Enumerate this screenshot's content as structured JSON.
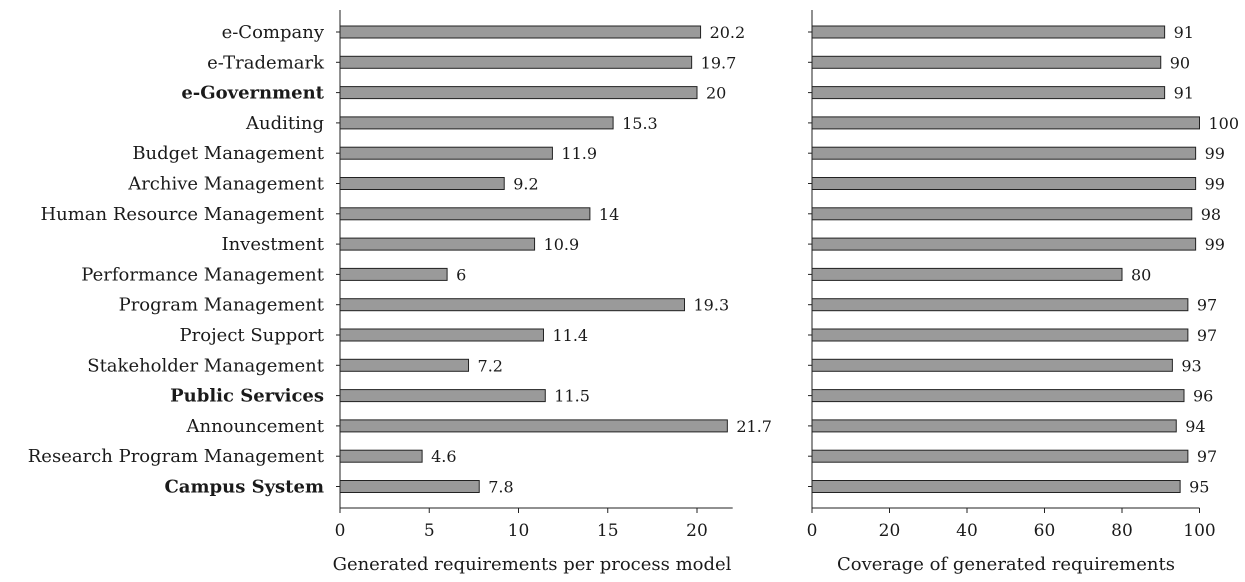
{
  "colors": {
    "bar_fill": "#9a9a9a",
    "bar_stroke": "#222222"
  },
  "chart_data": [
    {
      "type": "bar",
      "orientation": "horizontal",
      "categories": [
        "e-Company",
        "e-Trademark",
        "e-Government",
        "Auditing",
        "Budget Management",
        "Archive Management",
        "Human Resource Management",
        "Investment",
        "Performance Management",
        "Program Management",
        "Project Support",
        "Stakeholder Management",
        "Public Services",
        "Announcement",
        "Research Program Management",
        "Campus System"
      ],
      "bold_categories": [
        "e-Government",
        "Public Services",
        "Campus System"
      ],
      "values": [
        20.2,
        19.7,
        20,
        15.3,
        11.9,
        9.2,
        14,
        10.9,
        6,
        19.3,
        11.4,
        7.2,
        11.5,
        21.7,
        4.6,
        7.8
      ],
      "value_labels": [
        "20.2",
        "19.7",
        "20",
        "15.3",
        "11.9",
        "9.2",
        "14",
        "10.9",
        "6",
        "19.3",
        "11.4",
        "7.2",
        "11.5",
        "21.7",
        "4.6",
        "7.8"
      ],
      "xlabel": "Generated requirements per process model",
      "xlim": [
        0,
        22
      ],
      "xticks": [
        "0",
        "5",
        "10",
        "15",
        "20"
      ],
      "grid": false
    },
    {
      "type": "bar",
      "orientation": "horizontal",
      "categories": [
        "e-Company",
        "e-Trademark",
        "e-Government",
        "Auditing",
        "Budget Management",
        "Archive Management",
        "Human Resource Management",
        "Investment",
        "Performance Management",
        "Program Management",
        "Project Support",
        "Stakeholder Management",
        "Public Services",
        "Announcement",
        "Research Program Management",
        "Campus System"
      ],
      "values": [
        91,
        90,
        91,
        100,
        99,
        99,
        98,
        99,
        80,
        97,
        97,
        93,
        96,
        94,
        97,
        95
      ],
      "value_labels": [
        "91",
        "90",
        "91",
        "100",
        "99",
        "99",
        "98",
        "99",
        "80",
        "97",
        "97",
        "93",
        "96",
        "94",
        "97",
        "95"
      ],
      "xlabel": "Coverage of generated requirements",
      "xlim": [
        0,
        100
      ],
      "xticks": [
        "0",
        "20",
        "40",
        "60",
        "80",
        "100"
      ],
      "grid": false
    }
  ]
}
